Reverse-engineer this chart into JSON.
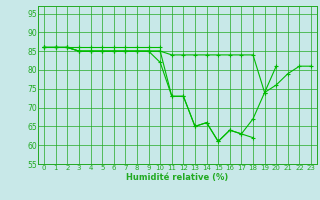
{
  "xlabel": "Humidité relative (%)",
  "bg_color": "#c8e8e8",
  "grid_color": "#22aa22",
  "line_color": "#00bb00",
  "xlim": [
    -0.5,
    23.5
  ],
  "ylim": [
    55,
    97
  ],
  "yticks": [
    55,
    60,
    65,
    70,
    75,
    80,
    85,
    90,
    95
  ],
  "xticks": [
    0,
    1,
    2,
    3,
    4,
    5,
    6,
    7,
    8,
    9,
    10,
    11,
    12,
    13,
    14,
    15,
    16,
    17,
    18,
    19,
    20,
    21,
    22,
    23
  ],
  "lines": [
    {
      "x": [
        0,
        1,
        2,
        3,
        4,
        5,
        6,
        7,
        8,
        9,
        10
      ],
      "y": [
        86,
        86,
        86,
        86,
        86,
        86,
        86,
        86,
        86,
        86,
        86
      ]
    },
    {
      "x": [
        0,
        1,
        2,
        3,
        4,
        5,
        6,
        7,
        8,
        9,
        10,
        11,
        12,
        13,
        14,
        15,
        16,
        17,
        18
      ],
      "y": [
        86,
        86,
        86,
        85,
        85,
        85,
        85,
        85,
        85,
        85,
        85,
        73,
        73,
        65,
        66,
        61,
        64,
        63,
        62
      ]
    },
    {
      "x": [
        0,
        1,
        2,
        3,
        4,
        5,
        6,
        7,
        8,
        9,
        10,
        11,
        12,
        13,
        14,
        15,
        16,
        17,
        18,
        19,
        20
      ],
      "y": [
        86,
        86,
        86,
        85,
        85,
        85,
        85,
        85,
        85,
        85,
        82,
        73,
        73,
        65,
        66,
        61,
        64,
        63,
        67,
        74,
        81
      ]
    },
    {
      "x": [
        0,
        1,
        2,
        3,
        4,
        5,
        6,
        7,
        8,
        9,
        10,
        11,
        12,
        13,
        14,
        15,
        16,
        17,
        18,
        19,
        20,
        21,
        22,
        23
      ],
      "y": [
        86,
        86,
        86,
        85,
        85,
        85,
        85,
        85,
        85,
        85,
        85,
        84,
        84,
        84,
        84,
        84,
        84,
        84,
        84,
        74,
        76,
        79,
        81,
        81
      ]
    }
  ]
}
